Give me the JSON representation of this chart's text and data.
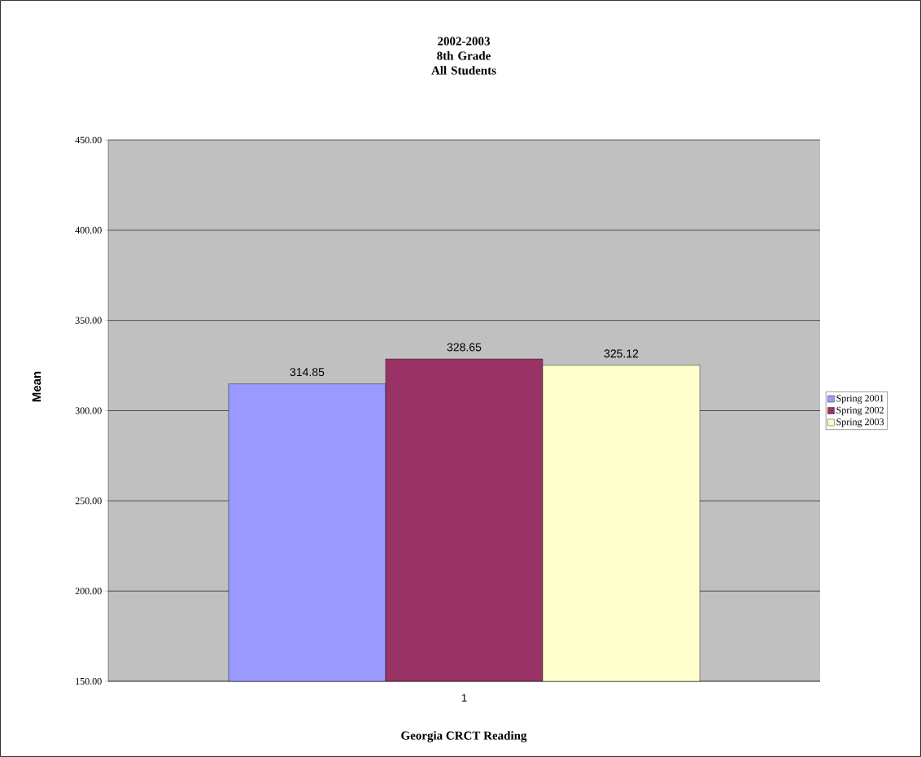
{
  "chart_data": {
    "type": "bar",
    "title": "2002-2003 8th Grade All Students",
    "xlabel": "Georgia CRCT Reading",
    "ylabel": "Mean",
    "categories": [
      "1"
    ],
    "series": [
      {
        "name": "Spring 2001",
        "color": "#9999ff",
        "values": [
          314.85
        ]
      },
      {
        "name": "Spring 2002",
        "color": "#993366",
        "values": [
          328.65
        ]
      },
      {
        "name": "Spring 2003",
        "color": "#ffffcc",
        "values": [
          325.12
        ]
      }
    ],
    "ylim": [
      150,
      450
    ],
    "yticks": [
      {
        "value": 150,
        "label": "150.00"
      },
      {
        "value": 200,
        "label": "200.00"
      },
      {
        "value": 250,
        "label": "250.00"
      },
      {
        "value": 300,
        "label": "300.00"
      },
      {
        "value": 350,
        "label": "350.00"
      },
      {
        "value": 400,
        "label": "400.00"
      },
      {
        "value": 450,
        "label": "450.00"
      }
    ],
    "grid": "y",
    "legend": "right",
    "data_labels": true
  }
}
